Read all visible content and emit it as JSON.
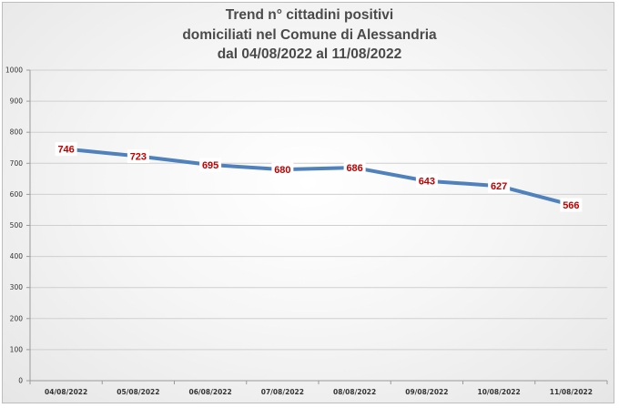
{
  "chart_data": {
    "type": "line",
    "title_lines": [
      "Trend n° cittadini positivi",
      "domiciliati nel Comune di Alessandria",
      "dal 04/08/2022 al 11/08/2022"
    ],
    "categories": [
      "04/08/2022",
      "05/08/2022",
      "06/08/2022",
      "07/08/2022",
      "08/08/2022",
      "09/08/2022",
      "10/08/2022",
      "11/08/2022"
    ],
    "series": [
      {
        "values": [
          746,
          723,
          695,
          680,
          686,
          643,
          627,
          566
        ]
      }
    ],
    "ylim": [
      0,
      1000
    ],
    "yticks": [
      0,
      100,
      200,
      300,
      400,
      500,
      600,
      700,
      800,
      900,
      1000
    ],
    "grid": true,
    "line_color": "#4f81bd",
    "label_color": "#c00000",
    "legend": "none"
  }
}
